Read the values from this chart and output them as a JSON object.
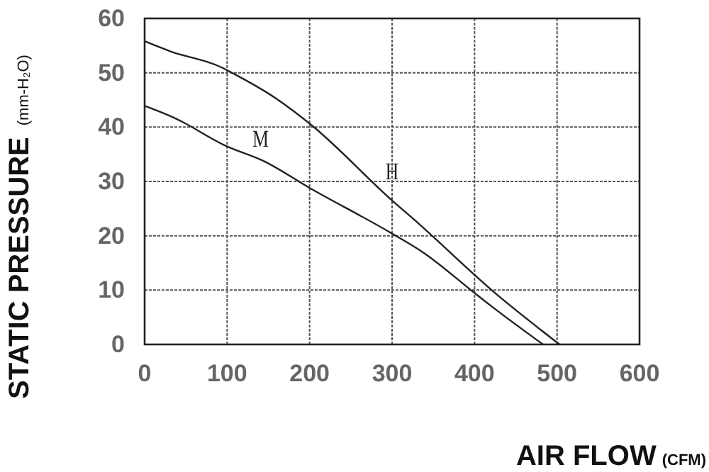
{
  "chart_data": {
    "type": "line",
    "xlabel": "AIR FLOW (CFM)",
    "ylabel": "STATIC PRESSURE (mm-H₂O)",
    "xlim": [
      0,
      600
    ],
    "xticks": [
      0,
      100,
      200,
      300,
      400,
      500,
      600
    ],
    "ylim": [
      0,
      60
    ],
    "yticks": [
      0,
      10,
      20,
      30,
      40,
      50,
      60
    ],
    "grid": true,
    "line_style": "solid",
    "marker": "none",
    "series": [
      {
        "name": "H",
        "color": "#222222",
        "x": [
          0,
          32,
          93,
          102,
          160,
          202,
          300,
          328,
          423,
          503
        ],
        "values": [
          55.8,
          53.9,
          51,
          50.3,
          45.2,
          40.4,
          26.5,
          22.8,
          9.7,
          0
        ]
      },
      {
        "name": "M",
        "color": "#222222",
        "x": [
          0,
          36,
          99,
          145,
          199,
          300,
          337,
          403,
          425,
          483
        ],
        "values": [
          43.9,
          41.7,
          36.5,
          33.7,
          28.9,
          20.4,
          17,
          9.1,
          6.5,
          0
        ]
      }
    ]
  }
}
